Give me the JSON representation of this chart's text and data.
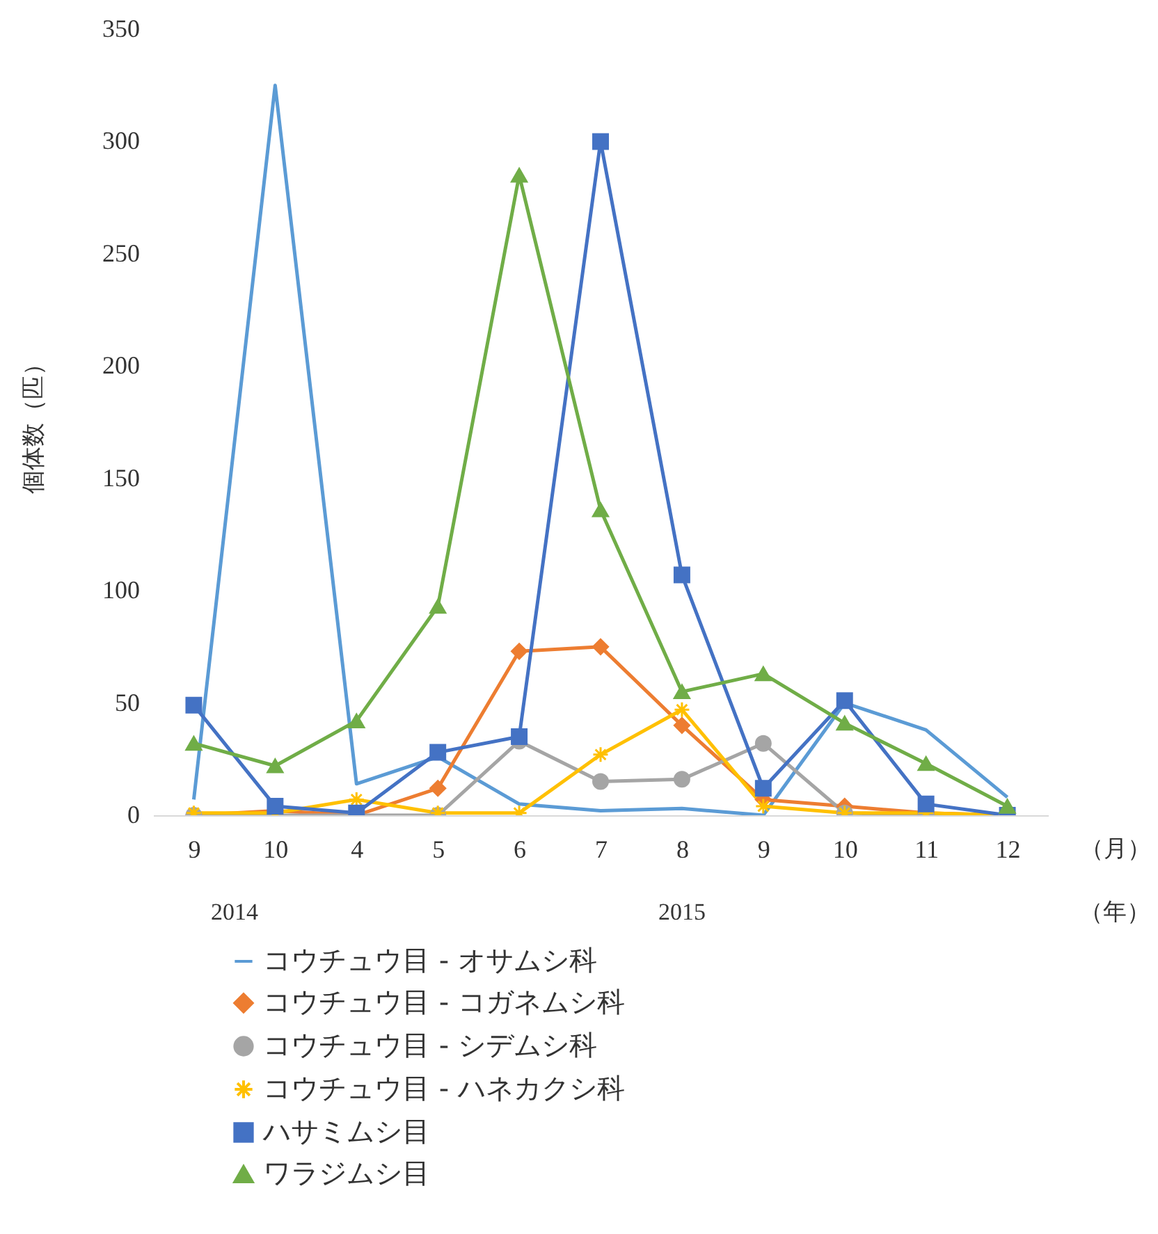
{
  "chart_data": {
    "type": "line",
    "ylabel": "個体数（匹）",
    "xlabel": "（月）",
    "categories": [
      "9",
      "10",
      "4",
      "5",
      "6",
      "7",
      "8",
      "9",
      "10",
      "11",
      "12"
    ],
    "ylim": [
      0,
      350
    ],
    "yticks": [
      0,
      50,
      100,
      150,
      200,
      250,
      300,
      350
    ],
    "annotations": [
      "2014",
      "2015",
      "（年）"
    ],
    "legend": "bottom",
    "series": [
      {
        "name": "コウチュウ目 - オサムシ科",
        "color": "#5b9bd5",
        "marker": "none",
        "values": [
          7,
          325,
          14,
          26,
          5,
          2,
          3,
          0,
          50,
          38,
          8
        ]
      },
      {
        "name": "コウチュウ目 - コガネムシ科",
        "color": "#ed7d31",
        "marker": "diamond",
        "values": [
          0,
          2,
          0,
          12,
          73,
          75,
          40,
          7,
          4,
          1,
          0
        ]
      },
      {
        "name": "コウチュウ目 - シデムシ科",
        "color": "#a5a5a5",
        "marker": "circle",
        "values": [
          0,
          0,
          0,
          0,
          33,
          15,
          16,
          32,
          1,
          0,
          0
        ]
      },
      {
        "name": "コウチュウ目 - ハネカクシ科",
        "color": "#ffc000",
        "marker": "cross",
        "values": [
          1,
          1,
          7,
          1,
          1,
          27,
          47,
          4,
          1,
          1,
          0
        ]
      },
      {
        "name": "ハサミムシ目",
        "color": "#4472c4",
        "marker": "square",
        "values": [
          49,
          4,
          1,
          28,
          35,
          300,
          107,
          12,
          51,
          5,
          0
        ]
      },
      {
        "name": "ワラジムシ目",
        "color": "#70ad47",
        "marker": "triangle",
        "values": [
          32,
          22,
          42,
          93,
          285,
          136,
          55,
          63,
          41,
          23,
          4
        ]
      }
    ]
  }
}
